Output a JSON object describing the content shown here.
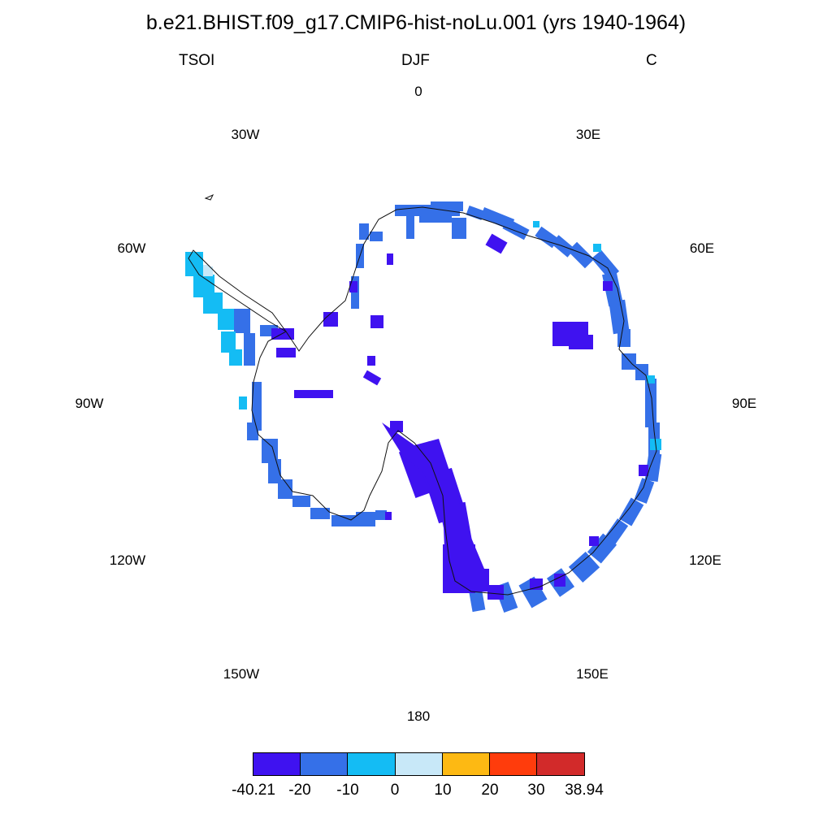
{
  "figure": {
    "title": "b.e21.BHIST.f09_g17.CMIP6-hist-noLu.001 (yrs 1940-1964)",
    "variable": "TSOI",
    "season": "DJF",
    "units": "C"
  },
  "map": {
    "projection": "south-polar-stereographic",
    "region": "Antarctica",
    "longitude_labels": [
      {
        "text": "0",
        "lon": 0
      },
      {
        "text": "30E",
        "lon": 30
      },
      {
        "text": "60E",
        "lon": 60
      },
      {
        "text": "90E",
        "lon": 90
      },
      {
        "text": "120E",
        "lon": 120
      },
      {
        "text": "150E",
        "lon": 150
      },
      {
        "text": "180",
        "lon": 180
      },
      {
        "text": "150W",
        "lon": -150
      },
      {
        "text": "120W",
        "lon": -120
      },
      {
        "text": "90W",
        "lon": -90
      },
      {
        "text": "60W",
        "lon": -60
      },
      {
        "text": "30W",
        "lon": -30
      }
    ]
  },
  "colorbar": {
    "labels": [
      "-40.21",
      "-20",
      "-10",
      "0",
      "10",
      "20",
      "30",
      "38.94"
    ],
    "colors": [
      "#3f12f0",
      "#3570e8",
      "#14bcf4",
      "#c8e8f8",
      "#fdb913",
      "#ff3c0c",
      "#d22a2a"
    ]
  }
}
